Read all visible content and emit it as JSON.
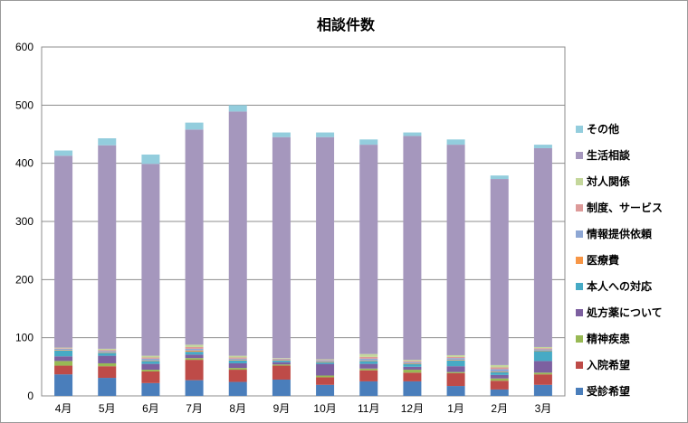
{
  "chart_data": {
    "type": "bar",
    "stacked": true,
    "title": "相談件数",
    "categories": [
      "4月",
      "5月",
      "6月",
      "7月",
      "8月",
      "9月",
      "10月",
      "11月",
      "12月",
      "1月",
      "2月",
      "3月"
    ],
    "ylim": [
      0,
      600
    ],
    "yticks": [
      0,
      100,
      200,
      300,
      400,
      500,
      600
    ],
    "grid": "horizontal major gridlines",
    "legend_position": "right",
    "series": [
      {
        "name": "受診希望",
        "color": "#4a7ebb",
        "values": [
          37,
          31,
          22,
          27,
          24,
          28,
          19,
          25,
          25,
          17,
          11,
          19
        ]
      },
      {
        "name": "入院希望",
        "color": "#be4b48",
        "values": [
          15,
          20,
          20,
          35,
          21,
          24,
          13,
          19,
          15,
          22,
          15,
          18
        ]
      },
      {
        "name": "精神疾患",
        "color": "#98b954",
        "values": [
          8,
          5,
          3,
          3,
          3,
          2,
          3,
          3,
          5,
          2,
          4,
          3
        ]
      },
      {
        "name": "処方薬について",
        "color": "#7d60a0",
        "values": [
          8,
          13,
          10,
          6,
          8,
          4,
          20,
          8,
          5,
          10,
          6,
          20
        ]
      },
      {
        "name": "本人への対応",
        "color": "#46aac5",
        "values": [
          10,
          5,
          5,
          5,
          5,
          3,
          3,
          5,
          5,
          10,
          5,
          17
        ]
      },
      {
        "name": "医療費",
        "color": "#f79646",
        "values": [
          1,
          1,
          1,
          2,
          1,
          1,
          1,
          1,
          1,
          1,
          1,
          1
        ]
      },
      {
        "name": "情報提供依頼",
        "color": "#8ea7d4",
        "values": [
          2,
          2,
          3,
          3,
          2,
          1,
          2,
          3,
          2,
          3,
          4,
          2
        ]
      },
      {
        "name": "制度、サービス",
        "color": "#dd9a99",
        "values": [
          1,
          2,
          2,
          3,
          2,
          1,
          1,
          3,
          2,
          2,
          3,
          2
        ]
      },
      {
        "name": "対人関係",
        "color": "#c4d79b",
        "values": [
          1,
          2,
          3,
          4,
          3,
          1,
          1,
          5,
          2,
          3,
          4,
          2
        ]
      },
      {
        "name": "生活相談",
        "color": "#a597bd",
        "values": [
          330,
          350,
          330,
          370,
          420,
          380,
          382,
          360,
          385,
          362,
          320,
          342
        ]
      },
      {
        "name": "その他",
        "color": "#93cddd",
        "values": [
          9,
          12,
          16,
          12,
          11,
          8,
          8,
          9,
          6,
          9,
          6,
          6
        ]
      }
    ],
    "legend_order": [
      "その他",
      "生活相談",
      "対人関係",
      "制度、サービス",
      "情報提供依頼",
      "医療費",
      "本人への対応",
      "処方薬について",
      "精神疾患",
      "入院希望",
      "受診希望"
    ]
  }
}
